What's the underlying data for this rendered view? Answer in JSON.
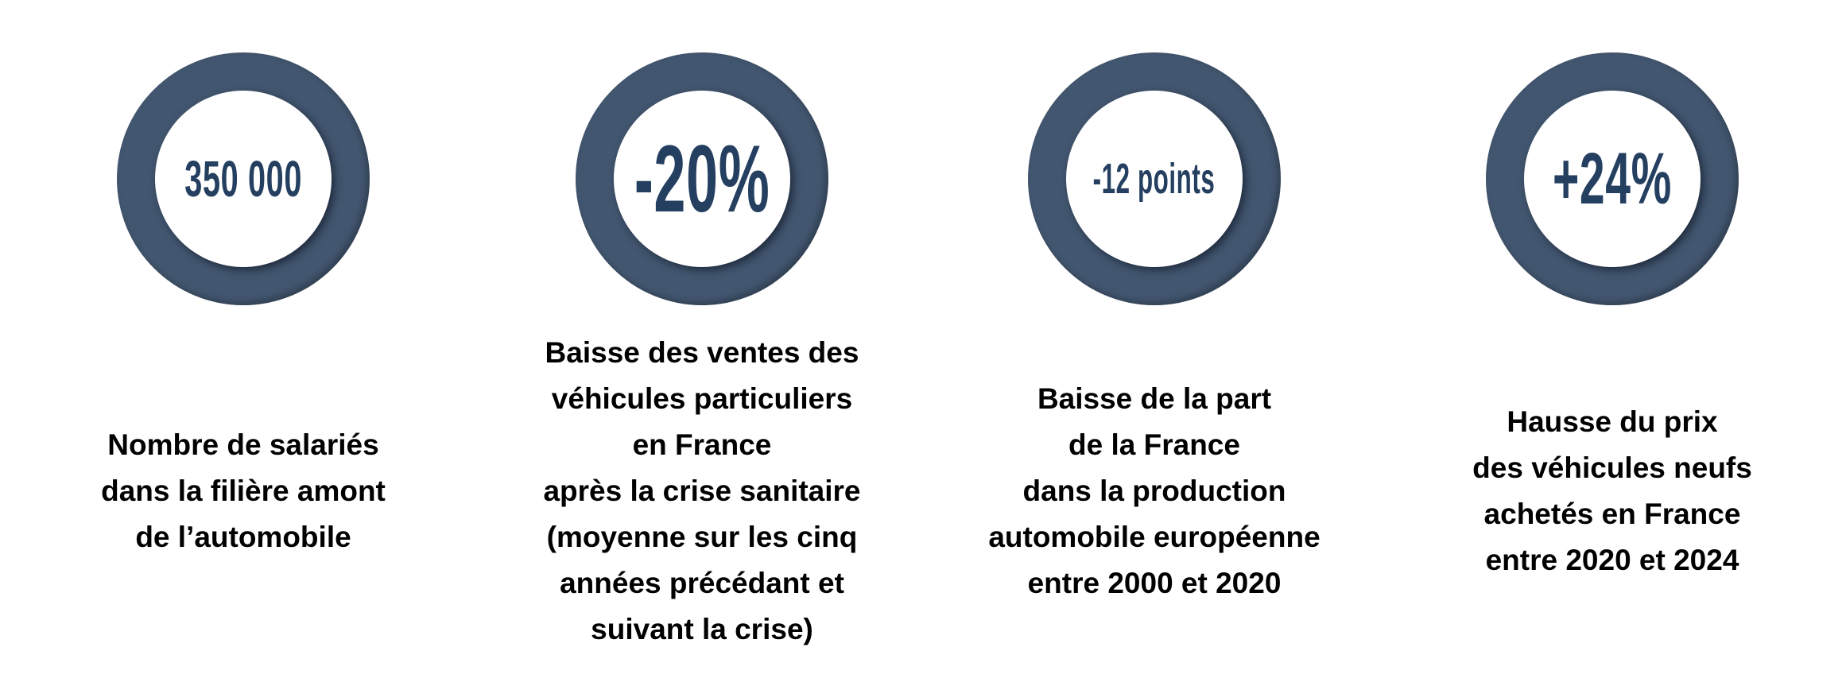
{
  "colors": {
    "ring": "#42566f",
    "number_text": "#243f60",
    "description_text": "#000000"
  },
  "stats": [
    {
      "value": "350 000",
      "description": [
        "Nombre de salariés",
        "dans la filière amont",
        "de l’automobile"
      ]
    },
    {
      "value": "-20%",
      "description": [
        "Baisse des ventes des",
        "véhicules particuliers",
        "en France",
        "après la crise sanitaire",
        "(moyenne sur les cinq",
        "années précédant et",
        "suivant la crise)"
      ]
    },
    {
      "value": "-12 points",
      "description": [
        "Baisse de la part",
        "de la France",
        "dans la production",
        "automobile européenne",
        "entre 2000 et 2020"
      ]
    },
    {
      "value": "+24%",
      "description": [
        "Hausse du prix",
        "des véhicules neufs",
        "achetés en France",
        "entre 2020 et 2024"
      ]
    }
  ]
}
